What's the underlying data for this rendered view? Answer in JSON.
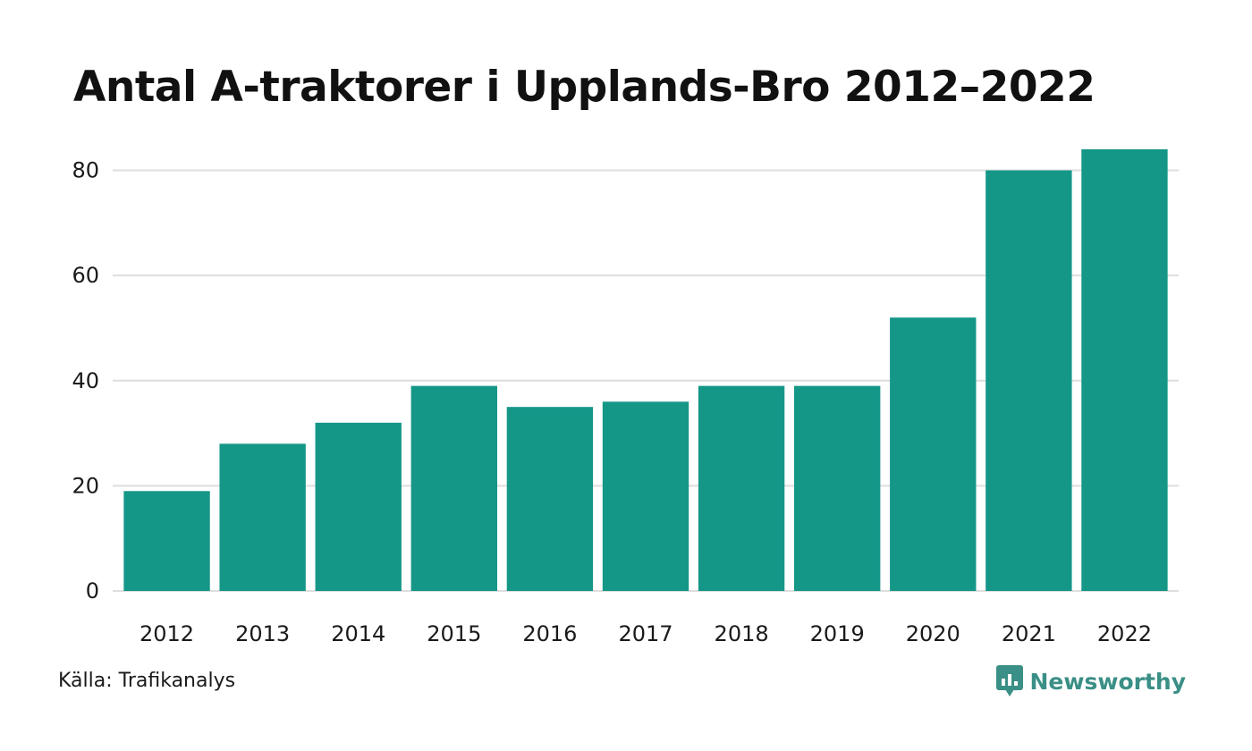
{
  "chart_data": {
    "type": "bar",
    "title": "Antal A-traktorer i Upplands-Bro 2012–2022",
    "categories": [
      "2012",
      "2013",
      "2014",
      "2015",
      "2016",
      "2017",
      "2018",
      "2019",
      "2020",
      "2021",
      "2022"
    ],
    "values": [
      19,
      28,
      32,
      39,
      35,
      36,
      39,
      39,
      52,
      80,
      84
    ],
    "xlabel": "",
    "ylabel": "",
    "ylim": [
      0,
      84
    ],
    "yticks": [
      0,
      20,
      40,
      60,
      80
    ],
    "grid": "horizontal",
    "legend": "none",
    "bar_color": "#159788",
    "grid_color": "#dedede"
  },
  "footer": {
    "source": "Källa: Trafikanalys",
    "brand": "Newsworthy",
    "brand_color": "#3a8f86",
    "brand_icon": "newsworthy-logo-icon"
  }
}
